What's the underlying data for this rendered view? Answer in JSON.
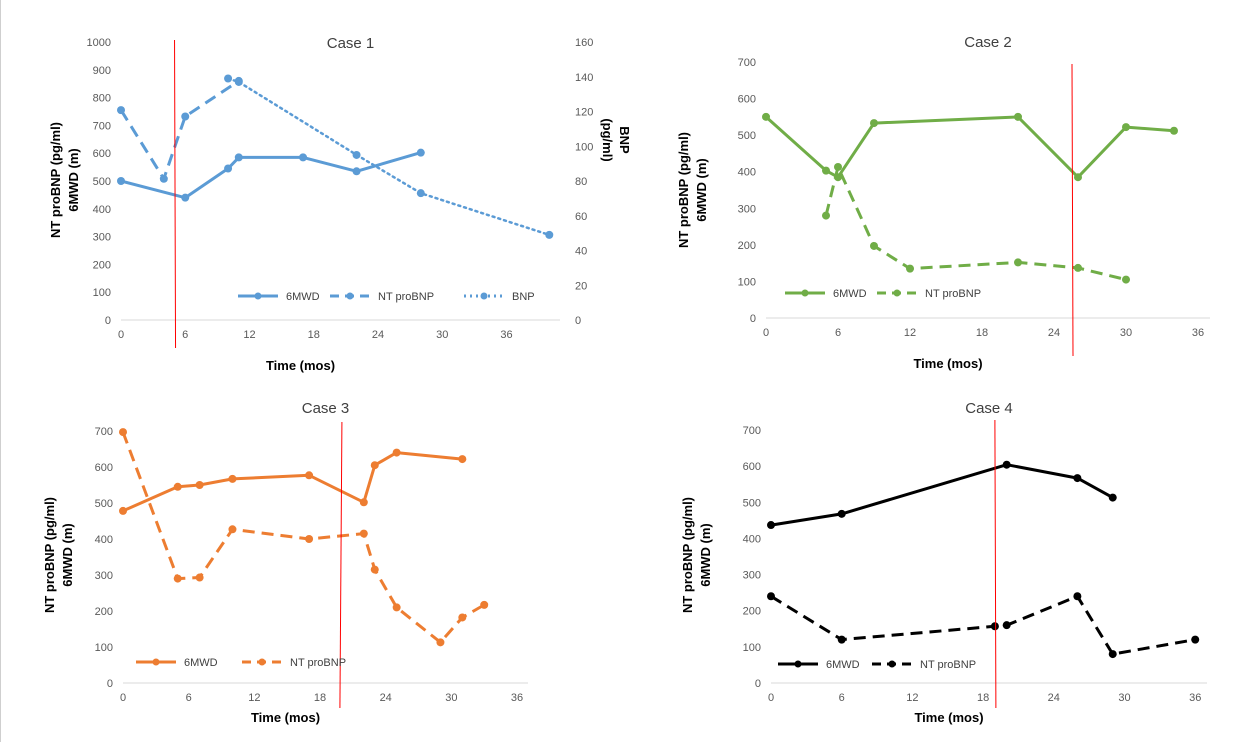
{
  "chart_data": [
    {
      "type": "line",
      "title": "Case 1",
      "xlabel": "Time (mos)",
      "ylabel": [
        "NT proBNP (pg/ml)",
        "6MWD (m)"
      ],
      "y2label": "BNP\n(pg/ml)",
      "xlim": [
        0,
        41
      ],
      "xticks": [
        0,
        6,
        12,
        18,
        24,
        30,
        36
      ],
      "ylim": [
        0,
        1000
      ],
      "yticks": [
        0,
        100,
        200,
        300,
        400,
        500,
        600,
        700,
        800,
        900,
        1000
      ],
      "y2lim": [
        0,
        160
      ],
      "y2ticks": [
        0,
        20,
        40,
        60,
        80,
        100,
        120,
        140,
        160
      ],
      "color": "#5b9bd5",
      "event_line_x": 5,
      "legend_position": "bottom",
      "series": [
        {
          "name": "6MWD",
          "style": "solid",
          "axis": "y",
          "x": [
            0,
            6,
            10,
            11,
            17,
            22,
            28
          ],
          "y": [
            500,
            440,
            545,
            585,
            585,
            535,
            602
          ]
        },
        {
          "name": "NT proBNP",
          "style": "dashed",
          "axis": "y",
          "x": [
            0,
            4,
            6,
            11
          ],
          "y": [
            755,
            508,
            732,
            860
          ]
        },
        {
          "name": "BNP",
          "style": "dotted",
          "axis": "y2",
          "x": [
            10,
            11,
            22,
            28,
            40
          ],
          "y": [
            139,
            137,
            95,
            73,
            49
          ]
        }
      ]
    },
    {
      "type": "line",
      "title": "Case 2",
      "xlabel": "Time (mos)",
      "ylabel": [
        "NT proBNP (pg/ml)",
        "6MWD (m)"
      ],
      "xlim": [
        0,
        37
      ],
      "xticks": [
        0,
        6,
        12,
        18,
        24,
        30,
        36
      ],
      "ylim": [
        0,
        700
      ],
      "yticks": [
        0,
        100,
        200,
        300,
        400,
        500,
        600,
        700
      ],
      "color": "#70ad47",
      "event_line_x": 25.5,
      "legend_position": "bottom",
      "series": [
        {
          "name": "6MWD",
          "style": "solid",
          "x": [
            0,
            5,
            6,
            9,
            21,
            26,
            30,
            34
          ],
          "y": [
            550,
            403,
            385,
            533,
            550,
            385,
            522,
            512
          ]
        },
        {
          "name": "NT proBNP",
          "style": "dashed",
          "x": [
            5,
            6,
            9,
            12,
            21,
            26,
            30
          ],
          "y": [
            280,
            413,
            197,
            135,
            152,
            137,
            105
          ]
        }
      ]
    },
    {
      "type": "line",
      "title": "Case 3",
      "xlabel": "Time (mos)",
      "ylabel": [
        "NT proBNP (pg/ml)",
        "6MWD (m)"
      ],
      "xlim": [
        0,
        37
      ],
      "xticks": [
        0,
        6,
        12,
        18,
        24,
        30,
        36
      ],
      "ylim": [
        0,
        700
      ],
      "yticks": [
        0,
        100,
        200,
        300,
        400,
        500,
        600,
        700
      ],
      "color": "#ed7d31",
      "event_line_x": 20,
      "legend_position": "bottom",
      "series": [
        {
          "name": "6MWD",
          "style": "solid",
          "x": [
            0,
            5,
            7,
            10,
            17,
            22,
            23,
            25,
            31
          ],
          "y": [
            478,
            545,
            550,
            567,
            577,
            502,
            605,
            640,
            622
          ]
        },
        {
          "name": "NT proBNP",
          "style": "dashed",
          "x": [
            0,
            5,
            7,
            10,
            17,
            22,
            23,
            25,
            29,
            31,
            33
          ],
          "y": [
            697,
            290,
            293,
            427,
            400,
            415,
            315,
            210,
            113,
            182,
            217
          ]
        }
      ]
    },
    {
      "type": "line",
      "title": "Case 4",
      "xlabel": "Time (mos)",
      "ylabel": [
        "NT proBNP (pg/ml)",
        "6MWD (m)"
      ],
      "xlim": [
        0,
        37
      ],
      "xticks": [
        0,
        6,
        12,
        18,
        24,
        30,
        36
      ],
      "ylim": [
        0,
        700
      ],
      "yticks": [
        0,
        100,
        200,
        300,
        400,
        500,
        600,
        700
      ],
      "color": "#000000",
      "event_line_x": 19,
      "legend_position": "bottom",
      "series": [
        {
          "name": "6MWD",
          "style": "solid",
          "x": [
            0,
            6,
            20,
            26,
            29
          ],
          "y": [
            437,
            468,
            604,
            567,
            513
          ]
        },
        {
          "name": "NT proBNP",
          "style": "dashed",
          "x": [
            0,
            6,
            19,
            20,
            26,
            29,
            36
          ],
          "y": [
            240,
            120,
            157,
            160,
            240,
            80,
            120
          ]
        }
      ]
    }
  ],
  "event_line_color": "#ff0000"
}
